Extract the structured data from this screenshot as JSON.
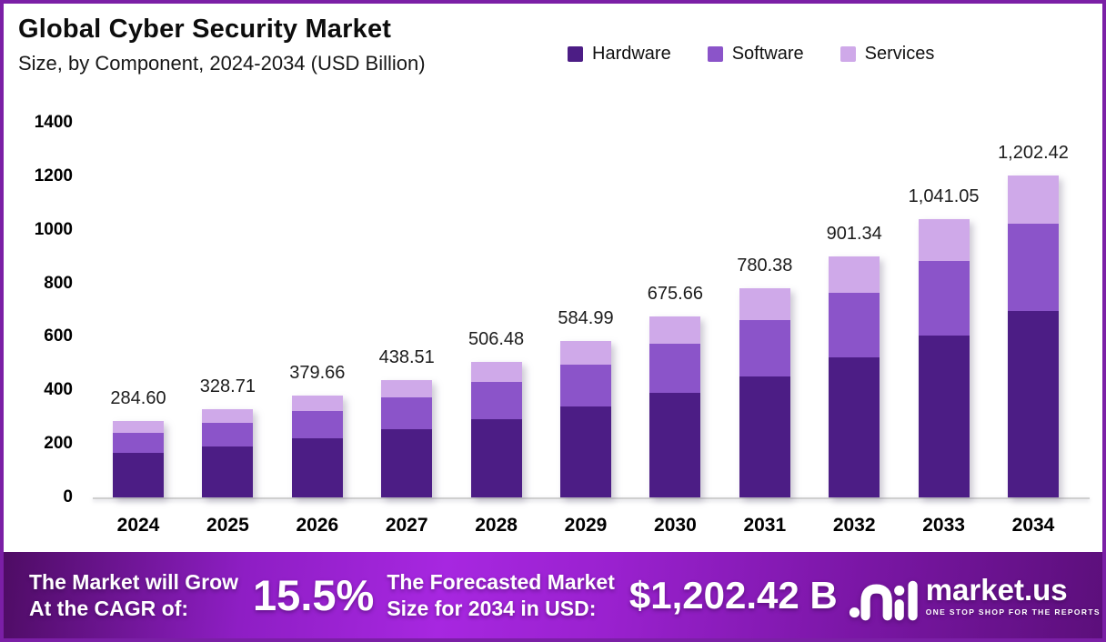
{
  "header": {
    "title": "Global Cyber Security Market",
    "subtitle": "Size, by Component, 2024-2034 (USD Billion)"
  },
  "chart_data": {
    "type": "bar",
    "stacked": true,
    "title": "Global Cyber Security Market Size, by Component, 2024-2034 (USD Billion)",
    "xlabel": "",
    "ylabel": "",
    "unit": "USD Billion",
    "ylim": [
      0,
      1400
    ],
    "yticks": [
      0,
      200,
      400,
      600,
      800,
      1000,
      1200,
      1400
    ],
    "grid": false,
    "legend_position": "top-right",
    "categories": [
      "2024",
      "2025",
      "2026",
      "2027",
      "2028",
      "2029",
      "2030",
      "2031",
      "2032",
      "2033",
      "2034"
    ],
    "series": [
      {
        "name": "Hardware",
        "color": "#4c1d85",
        "values": [
          165.07,
          190.65,
          220.2,
          254.34,
          293.76,
          339.29,
          391.88,
          452.62,
          522.78,
          603.81,
          697.4
        ]
      },
      {
        "name": "Software",
        "color": "#8b54c9",
        "values": [
          76.84,
          88.75,
          102.51,
          118.4,
          136.75,
          157.95,
          182.43,
          210.7,
          243.36,
          281.08,
          324.65
        ]
      },
      {
        "name": "Services",
        "color": "#cfa9e9",
        "values": [
          42.69,
          49.31,
          56.95,
          65.78,
          75.97,
          87.75,
          101.35,
          117.06,
          135.2,
          156.16,
          180.36
        ]
      }
    ],
    "totals": [
      284.6,
      328.71,
      379.66,
      438.51,
      506.48,
      584.99,
      675.66,
      780.38,
      901.34,
      1041.05,
      1202.42
    ],
    "total_labels": [
      "284.60",
      "328.71",
      "379.66",
      "438.51",
      "506.48",
      "584.99",
      "675.66",
      "780.38",
      "901.34",
      "1,041.05",
      "1,202.42"
    ]
  },
  "banner": {
    "cagr_line1": "The Market will Grow",
    "cagr_line2": "At the CAGR of:",
    "cagr_value": "15.5%",
    "forecast_line1": "The Forecasted Market",
    "forecast_line2": "Size for 2034 in USD:",
    "forecast_value": "$1,202.42 B",
    "brand_name": "market.us",
    "brand_tagline": "ONE STOP SHOP FOR THE REPORTS"
  }
}
